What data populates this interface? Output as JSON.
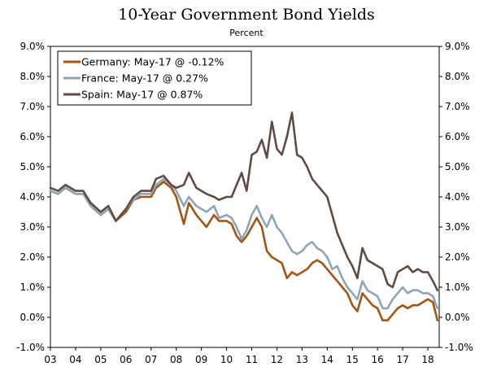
{
  "chart_data": {
    "type": "line",
    "title": "10-Year Government Bond Yields",
    "subtitle": "Percent",
    "x_tick_labels": [
      "03",
      "04",
      "05",
      "06",
      "07",
      "08",
      "09",
      "10",
      "11",
      "12",
      "13",
      "14",
      "15",
      "16",
      "17",
      "18"
    ],
    "x_tick_years": [
      2003,
      2004,
      2005,
      2006,
      2007,
      2008,
      2009,
      2010,
      2011,
      2012,
      2013,
      2014,
      2015,
      2016,
      2017,
      2018
    ],
    "xlim": [
      2003.0,
      2018.45
    ],
    "ylim": [
      -1.0,
      9.0
    ],
    "y_ticks": [
      -1,
      0,
      1,
      2,
      3,
      4,
      5,
      6,
      7,
      8,
      9
    ],
    "y_tick_labels": [
      "-1.0%",
      "0.0%",
      "1.0%",
      "2.0%",
      "3.0%",
      "4.0%",
      "5.0%",
      "6.0%",
      "7.0%",
      "8.0%",
      "9.0%"
    ],
    "grid": false,
    "legend_position": "top-left",
    "series": [
      {
        "name": "Germany",
        "label": "Germany: May-17 @ -0.12%",
        "color": "#a45515",
        "x": [
          2003.0,
          2003.3,
          2003.6,
          2004.0,
          2004.3,
          2004.6,
          2005.0,
          2005.3,
          2005.6,
          2006.0,
          2006.3,
          2006.6,
          2007.0,
          2007.2,
          2007.5,
          2007.8,
          2008.0,
          2008.3,
          2008.5,
          2008.8,
          2009.0,
          2009.2,
          2009.5,
          2009.7,
          2010.0,
          2010.2,
          2010.4,
          2010.6,
          2010.8,
          2011.0,
          2011.2,
          2011.4,
          2011.6,
          2011.8,
          2012.0,
          2012.2,
          2012.4,
          2012.6,
          2012.8,
          2013.0,
          2013.2,
          2013.4,
          2013.6,
          2013.8,
          2014.0,
          2014.2,
          2014.4,
          2014.6,
          2014.8,
          2015.0,
          2015.2,
          2015.4,
          2015.6,
          2015.8,
          2016.0,
          2016.2,
          2016.4,
          2016.6,
          2016.8,
          2017.0,
          2017.2,
          2017.4,
          2017.6,
          2017.8,
          2018.0,
          2018.2,
          2018.38
        ],
        "y": [
          4.2,
          4.1,
          4.3,
          4.1,
          4.1,
          3.7,
          3.4,
          3.6,
          3.2,
          3.5,
          3.9,
          4.0,
          4.0,
          4.3,
          4.5,
          4.3,
          4.0,
          3.1,
          3.8,
          3.4,
          3.2,
          3.0,
          3.4,
          3.2,
          3.2,
          3.1,
          2.7,
          2.5,
          2.7,
          3.0,
          3.3,
          3.0,
          2.2,
          2.0,
          1.9,
          1.8,
          1.3,
          1.5,
          1.4,
          1.5,
          1.6,
          1.8,
          1.9,
          1.8,
          1.6,
          1.4,
          1.2,
          1.0,
          0.8,
          0.4,
          0.2,
          0.8,
          0.6,
          0.4,
          0.3,
          -0.1,
          -0.1,
          0.1,
          0.3,
          0.4,
          0.3,
          0.4,
          0.4,
          0.5,
          0.6,
          0.5,
          -0.1
        ]
      },
      {
        "name": "France",
        "label": "France: May-17 @ 0.27%",
        "color": "#8da6b5",
        "x": [
          2003.0,
          2003.3,
          2003.6,
          2004.0,
          2004.3,
          2004.6,
          2005.0,
          2005.3,
          2005.6,
          2006.0,
          2006.3,
          2006.6,
          2007.0,
          2007.2,
          2007.5,
          2007.8,
          2008.0,
          2008.3,
          2008.5,
          2008.8,
          2009.0,
          2009.2,
          2009.5,
          2009.7,
          2010.0,
          2010.2,
          2010.4,
          2010.6,
          2010.8,
          2011.0,
          2011.2,
          2011.4,
          2011.6,
          2011.8,
          2012.0,
          2012.2,
          2012.4,
          2012.6,
          2012.8,
          2013.0,
          2013.2,
          2013.4,
          2013.6,
          2013.8,
          2014.0,
          2014.2,
          2014.4,
          2014.6,
          2014.8,
          2015.0,
          2015.2,
          2015.4,
          2015.6,
          2015.8,
          2016.0,
          2016.2,
          2016.4,
          2016.6,
          2016.8,
          2017.0,
          2017.2,
          2017.4,
          2017.6,
          2017.8,
          2018.0,
          2018.2,
          2018.38
        ],
        "y": [
          4.2,
          4.1,
          4.3,
          4.1,
          4.1,
          3.7,
          3.4,
          3.6,
          3.2,
          3.6,
          3.9,
          4.1,
          4.1,
          4.4,
          4.6,
          4.4,
          4.2,
          3.7,
          4.0,
          3.7,
          3.6,
          3.5,
          3.7,
          3.3,
          3.4,
          3.3,
          3.0,
          2.6,
          2.9,
          3.4,
          3.7,
          3.3,
          3.0,
          3.4,
          3.0,
          2.8,
          2.5,
          2.2,
          2.1,
          2.2,
          2.4,
          2.5,
          2.3,
          2.2,
          2.0,
          1.6,
          1.7,
          1.3,
          1.0,
          0.8,
          0.6,
          1.2,
          0.9,
          0.8,
          0.7,
          0.3,
          0.3,
          0.6,
          0.8,
          1.0,
          0.8,
          0.9,
          0.9,
          0.8,
          0.8,
          0.7,
          0.3
        ]
      },
      {
        "name": "Spain",
        "label": "Spain: May-17 @ 0.87%",
        "color": "#5e4c42",
        "x": [
          2003.0,
          2003.3,
          2003.6,
          2004.0,
          2004.3,
          2004.6,
          2005.0,
          2005.3,
          2005.6,
          2006.0,
          2006.3,
          2006.6,
          2007.0,
          2007.2,
          2007.5,
          2007.8,
          2008.0,
          2008.3,
          2008.5,
          2008.8,
          2009.0,
          2009.2,
          2009.5,
          2009.7,
          2010.0,
          2010.2,
          2010.4,
          2010.6,
          2010.8,
          2011.0,
          2011.2,
          2011.4,
          2011.6,
          2011.8,
          2012.0,
          2012.2,
          2012.4,
          2012.6,
          2012.8,
          2013.0,
          2013.2,
          2013.4,
          2013.6,
          2013.8,
          2014.0,
          2014.2,
          2014.4,
          2014.6,
          2014.8,
          2015.0,
          2015.2,
          2015.4,
          2015.6,
          2015.8,
          2016.0,
          2016.2,
          2016.4,
          2016.6,
          2016.8,
          2017.0,
          2017.2,
          2017.4,
          2017.6,
          2017.8,
          2018.0,
          2018.2,
          2018.38
        ],
        "y": [
          4.3,
          4.2,
          4.4,
          4.2,
          4.2,
          3.8,
          3.5,
          3.7,
          3.2,
          3.6,
          4.0,
          4.2,
          4.2,
          4.6,
          4.7,
          4.4,
          4.3,
          4.4,
          4.8,
          4.3,
          4.2,
          4.1,
          4.0,
          3.9,
          4.0,
          4.0,
          4.4,
          4.8,
          4.2,
          5.4,
          5.5,
          5.9,
          5.3,
          6.5,
          5.6,
          5.4,
          6.0,
          6.8,
          5.4,
          5.3,
          5.0,
          4.6,
          4.4,
          4.2,
          4.0,
          3.4,
          2.8,
          2.4,
          2.0,
          1.7,
          1.3,
          2.3,
          1.9,
          1.8,
          1.7,
          1.6,
          1.1,
          1.0,
          1.5,
          1.6,
          1.7,
          1.5,
          1.6,
          1.5,
          1.5,
          1.2,
          0.9
        ]
      }
    ]
  }
}
